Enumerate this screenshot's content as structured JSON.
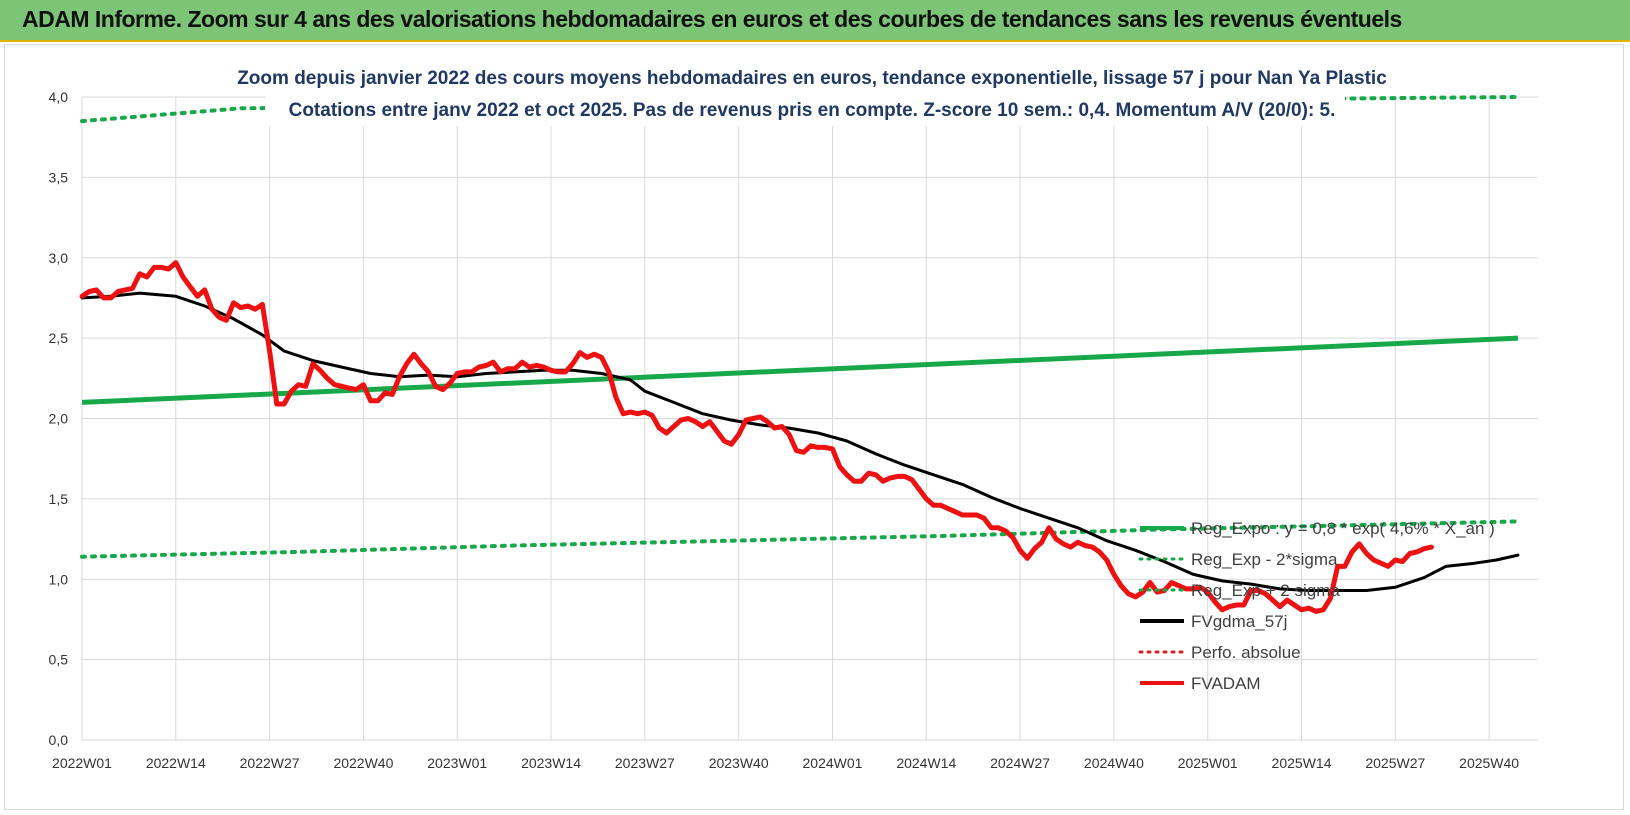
{
  "header": {
    "title": "ADAM Informe. Zoom sur 4 ans des valorisations hebdomadaires en euros et des courbes de tendances sans les revenus éventuels"
  },
  "colors": {
    "header_bg": "#7cc576",
    "trend_green": "#17a84a",
    "smooth_black": "#000000",
    "price_red": "#ee1111",
    "perf_red": "#d62020"
  },
  "chart_data": {
    "type": "line",
    "title": "Zoom depuis janvier 2022 des cours moyens hebdomadaires en euros, tendance exponentielle, lissage 57 j pour Nan Ya Plastic",
    "subtitle": "Cotations entre janv 2022 et oct 2025. Pas de revenus pris en compte. Z-score 10 sem.: 0,4. Momentum A/V (20/0): 5.",
    "xlabel": "",
    "ylabel": "",
    "ylim": [
      0,
      4
    ],
    "y_ticks": [
      "0,0",
      "0,5",
      "1,0",
      "1,5",
      "2,0",
      "2,5",
      "3,0",
      "3,5",
      "4,0"
    ],
    "x_ticks": [
      {
        "label": "2022W01",
        "week": 0
      },
      {
        "label": "2022W14",
        "week": 13
      },
      {
        "label": "2022W27",
        "week": 26
      },
      {
        "label": "2022W40",
        "week": 39
      },
      {
        "label": "2023W01",
        "week": 52
      },
      {
        "label": "2023W14",
        "week": 65
      },
      {
        "label": "2023W27",
        "week": 78
      },
      {
        "label": "2023W40",
        "week": 91
      },
      {
        "label": "2024W01",
        "week": 104
      },
      {
        "label": "2024W14",
        "week": 117
      },
      {
        "label": "2024W27",
        "week": 130
      },
      {
        "label": "2024W40",
        "week": 143
      },
      {
        "label": "2025W01",
        "week": 156
      },
      {
        "label": "2025W14",
        "week": 169
      },
      {
        "label": "2025W27",
        "week": 182
      },
      {
        "label": "2025W40",
        "week": 195
      }
    ],
    "x_range": [
      0,
      199
    ],
    "grid": true,
    "legend_position": "bottom-right",
    "series": [
      {
        "name": "Reg_Expo : y = 0,8 * exp( 4,6% *  X_an )",
        "style": "solid",
        "color": "#17a84a",
        "points": [
          [
            0,
            2.1
          ],
          [
            199,
            2.5
          ]
        ]
      },
      {
        "name": "Reg_Exp - 2*sigma",
        "style": "dotted",
        "color": "#17a84a",
        "points": [
          [
            0,
            1.14
          ],
          [
            30,
            1.17
          ],
          [
            60,
            1.21
          ],
          [
            90,
            1.24
          ],
          [
            120,
            1.27
          ],
          [
            150,
            1.31
          ],
          [
            180,
            1.34
          ],
          [
            199,
            1.36
          ]
        ]
      },
      {
        "name": "Reg_Exp + 2 sigma",
        "style": "dotted",
        "color": "#17a84a",
        "points": [
          [
            0,
            3.85
          ],
          [
            22,
            3.93
          ],
          [
            199,
            4.0
          ]
        ]
      },
      {
        "name": "FVgdma_57j",
        "style": "solid",
        "color": "#000000",
        "points": [
          [
            0,
            2.75
          ],
          [
            4,
            2.76
          ],
          [
            8,
            2.78
          ],
          [
            13,
            2.76
          ],
          [
            17,
            2.7
          ],
          [
            21,
            2.62
          ],
          [
            25,
            2.52
          ],
          [
            28,
            2.42
          ],
          [
            32,
            2.36
          ],
          [
            36,
            2.32
          ],
          [
            40,
            2.28
          ],
          [
            44,
            2.26
          ],
          [
            48,
            2.27
          ],
          [
            52,
            2.26
          ],
          [
            56,
            2.28
          ],
          [
            60,
            2.29
          ],
          [
            64,
            2.3
          ],
          [
            68,
            2.3
          ],
          [
            72,
            2.28
          ],
          [
            76,
            2.24
          ],
          [
            78,
            2.17
          ],
          [
            82,
            2.1
          ],
          [
            86,
            2.03
          ],
          [
            90,
            1.99
          ],
          [
            94,
            1.96
          ],
          [
            98,
            1.94
          ],
          [
            102,
            1.91
          ],
          [
            106,
            1.86
          ],
          [
            110,
            1.78
          ],
          [
            114,
            1.71
          ],
          [
            118,
            1.65
          ],
          [
            122,
            1.59
          ],
          [
            126,
            1.51
          ],
          [
            130,
            1.44
          ],
          [
            134,
            1.38
          ],
          [
            138,
            1.32
          ],
          [
            142,
            1.24
          ],
          [
            146,
            1.18
          ],
          [
            150,
            1.11
          ],
          [
            154,
            1.03
          ],
          [
            158,
            0.99
          ],
          [
            162,
            0.97
          ],
          [
            166,
            0.94
          ],
          [
            170,
            0.93
          ],
          [
            174,
            0.93
          ],
          [
            178,
            0.93
          ],
          [
            182,
            0.95
          ],
          [
            186,
            1.01
          ],
          [
            189,
            1.08
          ],
          [
            193,
            1.1
          ],
          [
            196,
            1.12
          ],
          [
            199,
            1.15
          ]
        ]
      },
      {
        "name": "Perfo. absolue",
        "style": "dotted",
        "color": "#d62020",
        "points": []
      },
      {
        "name": "FVADAM",
        "style": "solid-thick",
        "color": "#ee1111",
        "points": [
          [
            0,
            2.76
          ],
          [
            1,
            2.79
          ],
          [
            2,
            2.8
          ],
          [
            3,
            2.75
          ],
          [
            4,
            2.75
          ],
          [
            5,
            2.79
          ],
          [
            6,
            2.8
          ],
          [
            7,
            2.81
          ],
          [
            8,
            2.9
          ],
          [
            9,
            2.88
          ],
          [
            10,
            2.94
          ],
          [
            11,
            2.94
          ],
          [
            12,
            2.93
          ],
          [
            13,
            2.97
          ],
          [
            14,
            2.88
          ],
          [
            15,
            2.82
          ],
          [
            16,
            2.76
          ],
          [
            17,
            2.8
          ],
          [
            18,
            2.68
          ],
          [
            19,
            2.63
          ],
          [
            20,
            2.61
          ],
          [
            21,
            2.72
          ],
          [
            22,
            2.69
          ],
          [
            23,
            2.7
          ],
          [
            24,
            2.68
          ],
          [
            25,
            2.71
          ],
          [
            26,
            2.42
          ],
          [
            27,
            2.09
          ],
          [
            28,
            2.09
          ],
          [
            29,
            2.17
          ],
          [
            30,
            2.21
          ],
          [
            31,
            2.2
          ],
          [
            32,
            2.34
          ],
          [
            33,
            2.3
          ],
          [
            34,
            2.25
          ],
          [
            35,
            2.21
          ],
          [
            36,
            2.2
          ],
          [
            37,
            2.19
          ],
          [
            38,
            2.18
          ],
          [
            39,
            2.21
          ],
          [
            40,
            2.11
          ],
          [
            41,
            2.11
          ],
          [
            42,
            2.16
          ],
          [
            43,
            2.15
          ],
          [
            44,
            2.26
          ],
          [
            45,
            2.34
          ],
          [
            46,
            2.4
          ],
          [
            47,
            2.34
          ],
          [
            48,
            2.29
          ],
          [
            49,
            2.2
          ],
          [
            50,
            2.18
          ],
          [
            51,
            2.22
          ],
          [
            52,
            2.28
          ],
          [
            53,
            2.29
          ],
          [
            54,
            2.29
          ],
          [
            55,
            2.32
          ],
          [
            56,
            2.33
          ],
          [
            57,
            2.35
          ],
          [
            58,
            2.29
          ],
          [
            59,
            2.31
          ],
          [
            60,
            2.31
          ],
          [
            61,
            2.35
          ],
          [
            62,
            2.32
          ],
          [
            63,
            2.33
          ],
          [
            64,
            2.32
          ],
          [
            65,
            2.3
          ],
          [
            66,
            2.29
          ],
          [
            67,
            2.29
          ],
          [
            68,
            2.34
          ],
          [
            69,
            2.41
          ],
          [
            70,
            2.38
          ],
          [
            71,
            2.4
          ],
          [
            72,
            2.38
          ],
          [
            73,
            2.29
          ],
          [
            74,
            2.13
          ],
          [
            75,
            2.03
          ],
          [
            76,
            2.04
          ],
          [
            77,
            2.03
          ],
          [
            78,
            2.04
          ],
          [
            79,
            2.02
          ],
          [
            80,
            1.94
          ],
          [
            81,
            1.91
          ],
          [
            82,
            1.95
          ],
          [
            83,
            1.99
          ],
          [
            84,
            2.0
          ],
          [
            85,
            1.98
          ],
          [
            86,
            1.95
          ],
          [
            87,
            1.98
          ],
          [
            88,
            1.92
          ],
          [
            89,
            1.86
          ],
          [
            90,
            1.84
          ],
          [
            91,
            1.9
          ],
          [
            92,
            1.99
          ],
          [
            93,
            2.0
          ],
          [
            94,
            2.01
          ],
          [
            95,
            1.98
          ],
          [
            96,
            1.94
          ],
          [
            97,
            1.95
          ],
          [
            98,
            1.9
          ],
          [
            99,
            1.8
          ],
          [
            100,
            1.79
          ],
          [
            101,
            1.83
          ],
          [
            102,
            1.82
          ],
          [
            103,
            1.82
          ],
          [
            104,
            1.81
          ],
          [
            105,
            1.7
          ],
          [
            106,
            1.65
          ],
          [
            107,
            1.61
          ],
          [
            108,
            1.61
          ],
          [
            109,
            1.66
          ],
          [
            110,
            1.65
          ],
          [
            111,
            1.61
          ],
          [
            112,
            1.63
          ],
          [
            113,
            1.64
          ],
          [
            114,
            1.64
          ],
          [
            115,
            1.62
          ],
          [
            116,
            1.56
          ],
          [
            117,
            1.5
          ],
          [
            118,
            1.46
          ],
          [
            119,
            1.46
          ],
          [
            120,
            1.44
          ],
          [
            121,
            1.42
          ],
          [
            122,
            1.4
          ],
          [
            123,
            1.4
          ],
          [
            124,
            1.4
          ],
          [
            125,
            1.38
          ],
          [
            126,
            1.32
          ],
          [
            127,
            1.32
          ],
          [
            128,
            1.3
          ],
          [
            129,
            1.26
          ],
          [
            130,
            1.18
          ],
          [
            131,
            1.13
          ],
          [
            132,
            1.19
          ],
          [
            133,
            1.23
          ],
          [
            134,
            1.32
          ],
          [
            135,
            1.25
          ],
          [
            136,
            1.22
          ],
          [
            137,
            1.2
          ],
          [
            138,
            1.23
          ],
          [
            139,
            1.21
          ],
          [
            140,
            1.2
          ],
          [
            141,
            1.17
          ],
          [
            142,
            1.12
          ],
          [
            143,
            1.03
          ],
          [
            144,
            0.96
          ],
          [
            145,
            0.91
          ],
          [
            146,
            0.89
          ],
          [
            147,
            0.92
          ],
          [
            148,
            0.98
          ],
          [
            149,
            0.92
          ],
          [
            150,
            0.93
          ],
          [
            151,
            0.98
          ],
          [
            152,
            0.96
          ],
          [
            153,
            0.94
          ],
          [
            154,
            0.94
          ],
          [
            155,
            0.95
          ],
          [
            156,
            0.92
          ],
          [
            157,
            0.86
          ],
          [
            158,
            0.81
          ],
          [
            159,
            0.83
          ],
          [
            160,
            0.84
          ],
          [
            161,
            0.84
          ],
          [
            162,
            0.93
          ],
          [
            163,
            0.93
          ],
          [
            164,
            0.91
          ],
          [
            165,
            0.87
          ],
          [
            166,
            0.83
          ],
          [
            167,
            0.87
          ],
          [
            168,
            0.84
          ],
          [
            169,
            0.81
          ],
          [
            170,
            0.82
          ],
          [
            171,
            0.8
          ],
          [
            172,
            0.81
          ],
          [
            173,
            0.88
          ],
          [
            174,
            1.08
          ],
          [
            175,
            1.08
          ],
          [
            176,
            1.17
          ],
          [
            177,
            1.22
          ],
          [
            178,
            1.16
          ],
          [
            179,
            1.12
          ],
          [
            180,
            1.1
          ],
          [
            181,
            1.08
          ],
          [
            182,
            1.12
          ],
          [
            183,
            1.11
          ],
          [
            184,
            1.16
          ],
          [
            185,
            1.17
          ],
          [
            186,
            1.19
          ],
          [
            187,
            1.2
          ]
        ]
      }
    ]
  }
}
